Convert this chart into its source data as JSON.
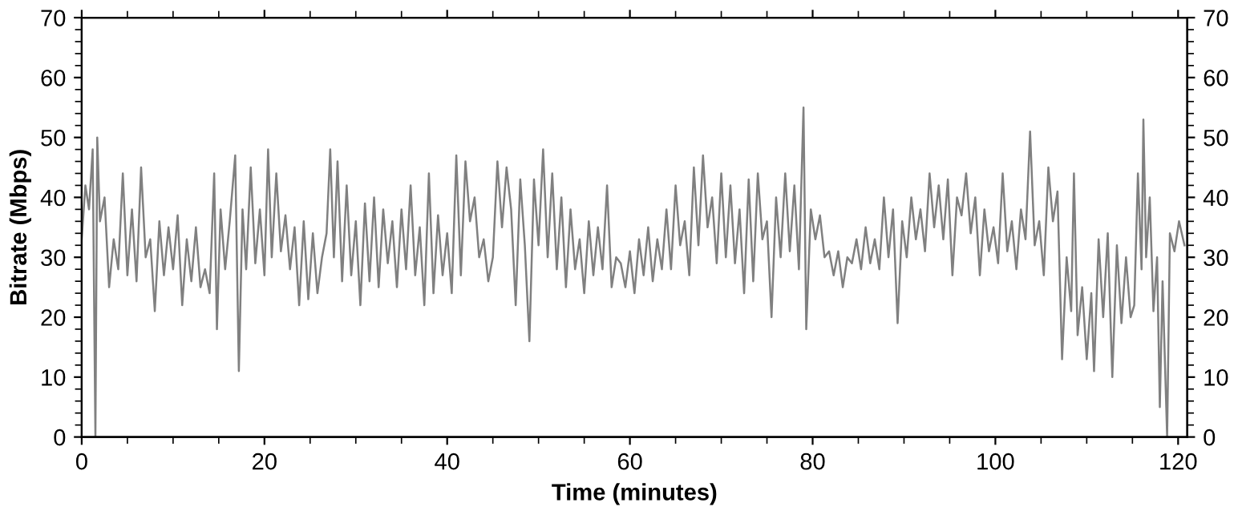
{
  "chart_data": {
    "type": "line",
    "xlabel": "Time (minutes)",
    "ylabel": "Bitrate (Mbps)",
    "xlim": [
      0,
      121
    ],
    "xticks": [
      0,
      20,
      40,
      60,
      80,
      100,
      120
    ],
    "ylim": [
      0,
      70
    ],
    "yticks": [
      0,
      10,
      20,
      30,
      40,
      50,
      60,
      70
    ],
    "y2lim": [
      0,
      70
    ],
    "y2ticks": [
      0,
      10,
      20,
      30,
      40,
      50,
      60,
      70
    ],
    "grid": false,
    "legend": false,
    "marker": "none",
    "line_style": "solid",
    "series": [
      {
        "color": "#808080",
        "x": [
          0,
          0.4,
          0.8,
          1.2,
          1.5,
          1.7,
          2.0,
          2.5,
          3.0,
          3.5,
          4.0,
          4.5,
          5.0,
          5.5,
          6.0,
          6.5,
          7.0,
          7.5,
          8.0,
          8.5,
          9.0,
          9.5,
          10.0,
          10.5,
          11.0,
          11.5,
          12.0,
          12.5,
          13.0,
          13.5,
          14.0,
          14.5,
          14.8,
          15.2,
          15.7,
          16.2,
          16.8,
          17.2,
          17.6,
          18.0,
          18.5,
          19.0,
          19.5,
          20.0,
          20.4,
          20.8,
          21.3,
          21.8,
          22.3,
          22.8,
          23.3,
          23.8,
          24.3,
          24.8,
          25.3,
          25.8,
          26.3,
          26.8,
          27.2,
          27.6,
          28.0,
          28.5,
          29.0,
          29.5,
          30.0,
          30.5,
          31.0,
          31.5,
          32.0,
          32.5,
          33.0,
          33.5,
          34.0,
          34.5,
          35.0,
          35.5,
          36.0,
          36.5,
          37.0,
          37.5,
          38.0,
          38.5,
          39.0,
          39.5,
          40.0,
          40.5,
          41.0,
          41.5,
          42.0,
          42.5,
          43.0,
          43.5,
          44.0,
          44.5,
          45.0,
          45.5,
          46.0,
          46.5,
          47.0,
          47.5,
          48.0,
          48.5,
          49.0,
          49.5,
          50.0,
          50.5,
          51.0,
          51.5,
          52.0,
          52.5,
          53.0,
          53.5,
          54.0,
          54.5,
          55.0,
          55.5,
          56.0,
          56.5,
          57.0,
          57.5,
          58.0,
          58.5,
          59.0,
          59.5,
          60.0,
          60.5,
          61.0,
          61.5,
          62.0,
          62.5,
          63.0,
          63.5,
          64.0,
          64.5,
          65.0,
          65.5,
          66.0,
          66.5,
          67.0,
          67.5,
          68.0,
          68.5,
          69.0,
          69.5,
          70.0,
          70.5,
          71.0,
          71.5,
          72.0,
          72.5,
          73.0,
          73.5,
          74.0,
          74.5,
          75.0,
          75.5,
          76.0,
          76.5,
          77.0,
          77.5,
          78.0,
          78.5,
          79.0,
          79.3,
          79.8,
          80.3,
          80.8,
          81.3,
          81.8,
          82.3,
          82.8,
          83.3,
          83.8,
          84.3,
          84.8,
          85.3,
          85.8,
          86.3,
          86.8,
          87.3,
          87.8,
          88.3,
          88.8,
          89.3,
          89.8,
          90.3,
          90.8,
          91.3,
          91.8,
          92.3,
          92.8,
          93.3,
          93.8,
          94.3,
          94.8,
          95.3,
          95.8,
          96.3,
          96.8,
          97.3,
          97.8,
          98.3,
          98.8,
          99.3,
          99.8,
          100.3,
          100.8,
          101.3,
          101.8,
          102.3,
          102.8,
          103.3,
          103.8,
          104.3,
          104.8,
          105.3,
          105.8,
          106.3,
          106.8,
          107.3,
          107.8,
          108.3,
          108.6,
          109.0,
          109.5,
          110.0,
          110.5,
          110.8,
          111.3,
          111.8,
          112.3,
          112.8,
          113.3,
          113.8,
          114.3,
          114.8,
          115.2,
          115.6,
          116.0,
          116.2,
          116.5,
          116.9,
          117.3,
          117.7,
          118.0,
          118.3,
          118.8,
          119.1,
          119.6,
          120.1,
          120.7
        ],
        "values": [
          33,
          42,
          38,
          48,
          0,
          50,
          36,
          40,
          25,
          33,
          28,
          44,
          27,
          38,
          26,
          45,
          30,
          33,
          21,
          36,
          27,
          35,
          28,
          37,
          22,
          33,
          26,
          35,
          25,
          28,
          24,
          44,
          18,
          38,
          28,
          36,
          47,
          11,
          38,
          28,
          45,
          29,
          38,
          27,
          48,
          30,
          44,
          31,
          37,
          28,
          35,
          22,
          36,
          23,
          34,
          24,
          30,
          34,
          48,
          30,
          46,
          26,
          42,
          27,
          36,
          22,
          39,
          26,
          40,
          25,
          38,
          29,
          36,
          25,
          38,
          28,
          42,
          27,
          35,
          22,
          44,
          24,
          37,
          27,
          34,
          24,
          47,
          27,
          46,
          36,
          40,
          30,
          33,
          26,
          30,
          46,
          35,
          45,
          38,
          22,
          43,
          32,
          16,
          43,
          32,
          48,
          30,
          44,
          28,
          40,
          25,
          38,
          28,
          33,
          24,
          36,
          27,
          35,
          28,
          42,
          25,
          30,
          29,
          25,
          31,
          24,
          33,
          27,
          35,
          26,
          33,
          28,
          38,
          28,
          42,
          32,
          36,
          27,
          45,
          32,
          47,
          35,
          40,
          29,
          44,
          30,
          42,
          29,
          38,
          24,
          43,
          26,
          44,
          33,
          36,
          20,
          40,
          30,
          44,
          31,
          42,
          28,
          55,
          18,
          38,
          33,
          37,
          30,
          31,
          27,
          31,
          25,
          30,
          29,
          33,
          28,
          35,
          29,
          33,
          28,
          40,
          30,
          38,
          19,
          36,
          30,
          40,
          33,
          38,
          31,
          44,
          35,
          42,
          33,
          43,
          27,
          40,
          37,
          44,
          34,
          40,
          27,
          38,
          31,
          35,
          29,
          44,
          31,
          36,
          28,
          38,
          33,
          51,
          32,
          36,
          27,
          45,
          36,
          41,
          13,
          30,
          21,
          44,
          17,
          25,
          13,
          24,
          11,
          33,
          20,
          34,
          10,
          32,
          19,
          30,
          20,
          22,
          44,
          28,
          53,
          30,
          40,
          21,
          30,
          5,
          26,
          0,
          34,
          31,
          36,
          32
        ]
      }
    ]
  }
}
